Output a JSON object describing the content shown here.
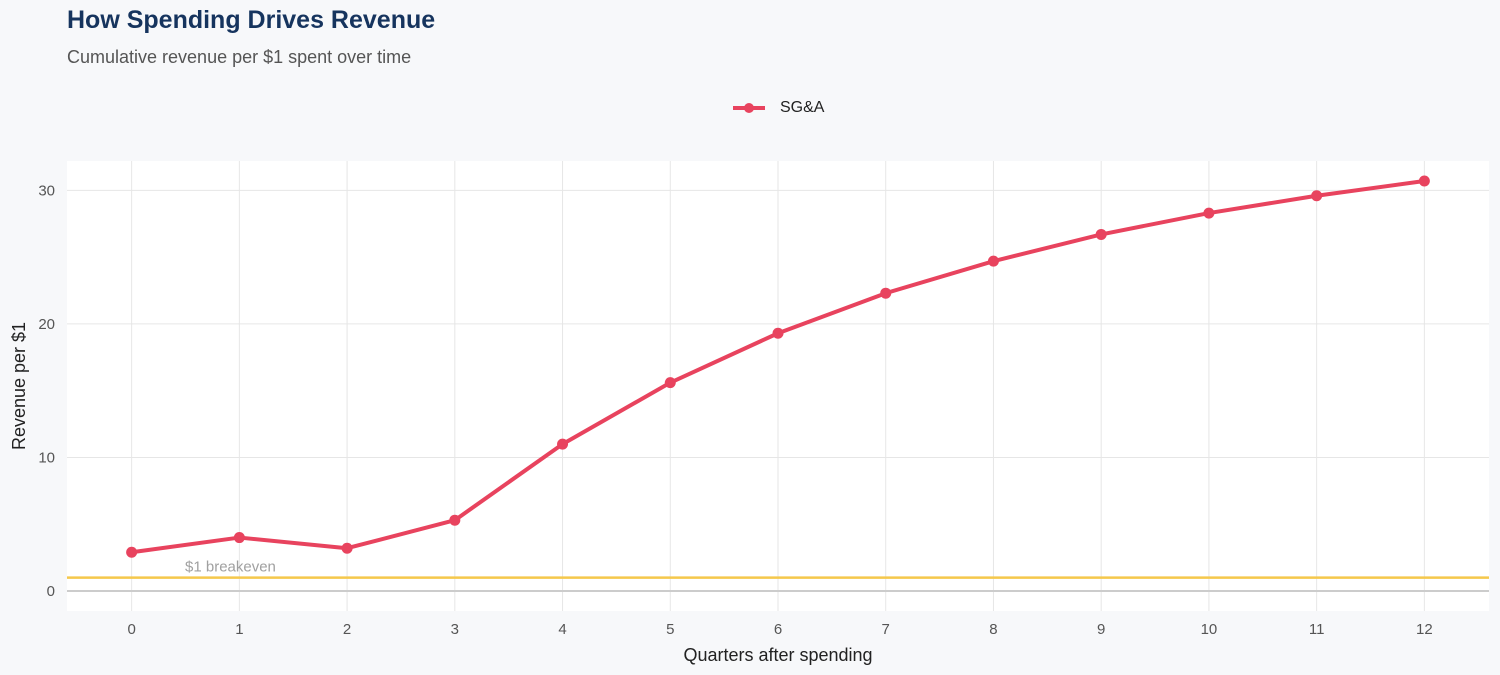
{
  "title": "How Spending Drives Revenue",
  "subtitle": "Cumulative revenue per $1 spent over time",
  "chart_data": {
    "type": "line",
    "title": "How Spending Drives Revenue",
    "subtitle": "Cumulative revenue per $1 spent over time",
    "xlabel": "Quarters after spending",
    "ylabel": "Revenue per $1",
    "x": [
      0,
      1,
      2,
      3,
      4,
      5,
      6,
      7,
      8,
      9,
      10,
      11,
      12
    ],
    "series": [
      {
        "name": "SG&A",
        "color": "#e8435e",
        "values": [
          2.9,
          4.0,
          3.2,
          5.3,
          11.0,
          15.6,
          19.3,
          22.3,
          24.7,
          26.7,
          28.3,
          29.6,
          30.7
        ]
      }
    ],
    "xlim": [
      -0.6,
      12.6
    ],
    "ylim": [
      -1.5,
      32.2
    ],
    "yticks": [
      0,
      10,
      20,
      30
    ],
    "xticks": [
      0,
      1,
      2,
      3,
      4,
      5,
      6,
      7,
      8,
      9,
      10,
      11,
      12
    ],
    "grid": true,
    "legend_position": "top",
    "reference_line": {
      "y": 1,
      "label": "$1 breakeven",
      "color": "#f5c84c"
    }
  }
}
